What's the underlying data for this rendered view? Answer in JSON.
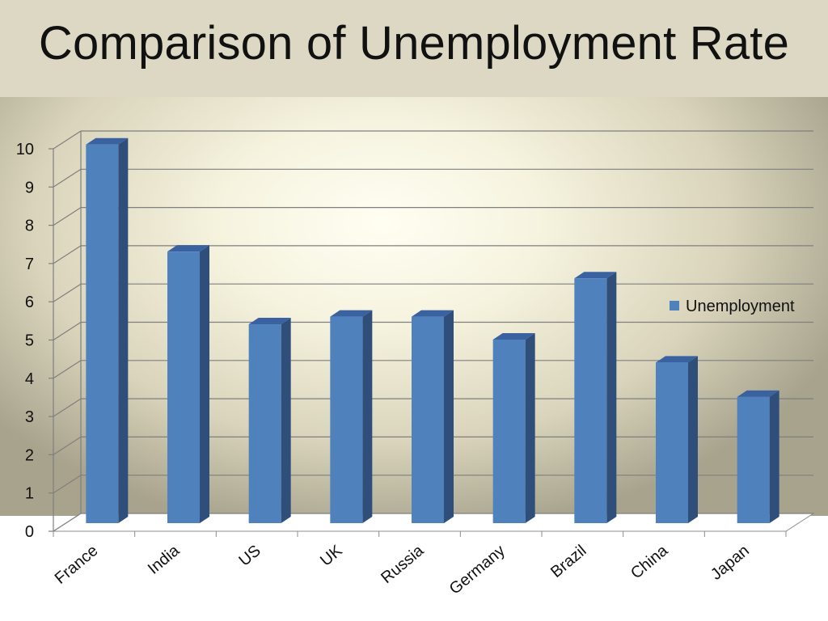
{
  "slide": {
    "title": "Comparison of Unemployment Rate"
  },
  "chart_data": {
    "type": "bar",
    "categories": [
      "France",
      "India",
      "US",
      "UK",
      "Russia",
      "Germany",
      "Brazil",
      "China",
      "Japan"
    ],
    "series": [
      {
        "name": "Unemployment",
        "values": [
          9.9,
          7.1,
          5.2,
          5.4,
          5.4,
          4.8,
          6.4,
          4.2,
          3.3
        ],
        "color": "#4f81bd"
      }
    ],
    "yticks": [
      "0",
      "1",
      "2",
      "3",
      "4",
      "5",
      "6",
      "7",
      "8",
      "9",
      "10"
    ],
    "ylim": [
      0,
      10
    ],
    "grid": true,
    "legend": "right",
    "style": "3d-column"
  }
}
